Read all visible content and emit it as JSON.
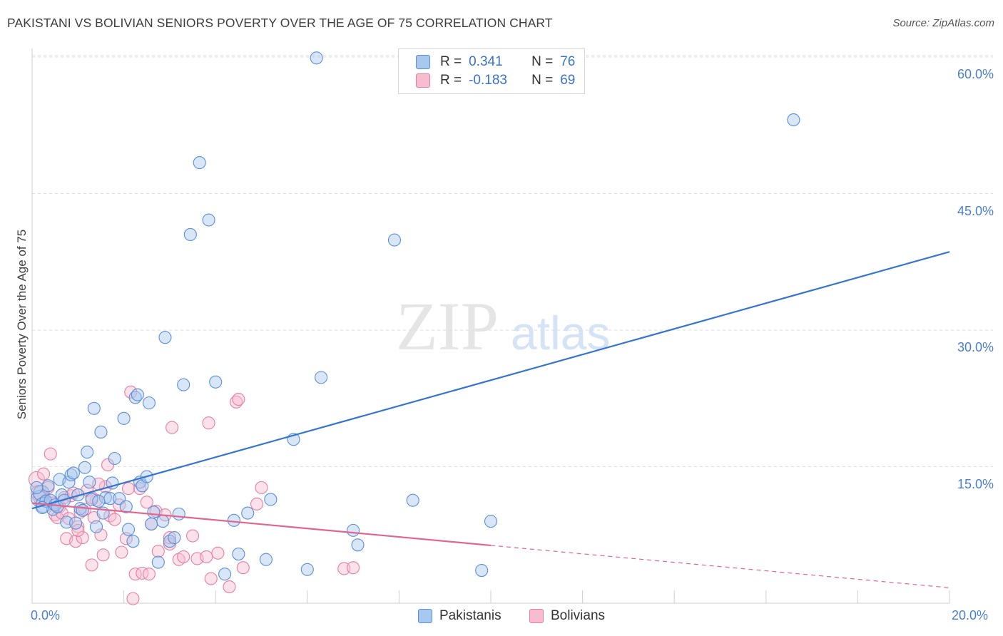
{
  "title": "PAKISTANI VS BOLIVIAN SENIORS POVERTY OVER THE AGE OF 75 CORRELATION CHART",
  "source": "Source: ZipAtlas.com",
  "watermark": {
    "zip": "ZIP",
    "atlas": "atlas"
  },
  "legend_top": {
    "rows": [
      {
        "r_label": "R =",
        "r_value": "0.341",
        "n_label": "N =",
        "n_value": "76"
      },
      {
        "r_label": "R =",
        "r_value": "-0.183",
        "n_label": "N =",
        "n_value": "69"
      }
    ]
  },
  "legend_bottom": {
    "series1": "Pakistanis",
    "series2": "Bolivians"
  },
  "colors": {
    "pak_fill": "#a9c8f0",
    "pak_stroke": "#5b8fd6",
    "pak_line": "#3575cf",
    "bol_fill": "#f7bcd0",
    "bol_stroke": "#e57ea1",
    "bol_line": "#e0668f",
    "tick_text": "#4a7fcf"
  },
  "chart_data": {
    "type": "scatter",
    "title": "PAKISTANI VS BOLIVIAN SENIORS POVERTY OVER THE AGE OF 75 CORRELATION CHART",
    "xlabel": "",
    "ylabel": "Seniors Poverty Over the Age of 75",
    "xlim": [
      0,
      20
    ],
    "ylim": [
      0,
      60
    ],
    "x_tick_labels": [
      "0.0%",
      "20.0%"
    ],
    "y_ticks": [
      15,
      30,
      45,
      60
    ],
    "y_tick_labels": [
      "15.0%",
      "30.0%",
      "45.0%",
      "60.0%"
    ],
    "grid": true,
    "legend_position": "top-center",
    "series": [
      {
        "name": "Pakistanis",
        "R": 0.341,
        "N": 76,
        "trend": {
          "x": [
            0,
            20
          ],
          "y": [
            10.4,
            38.6
          ],
          "dashed_from": null
        },
        "points": [
          [
            0.15,
            11.5
          ],
          [
            0.2,
            12.1
          ],
          [
            0.25,
            10.8
          ],
          [
            0.3,
            11.2
          ],
          [
            0.35,
            12.9
          ],
          [
            0.4,
            11.3
          ],
          [
            0.45,
            10.3
          ],
          [
            0.5,
            10.8
          ],
          [
            0.55,
            10.6
          ],
          [
            0.6,
            13.6
          ],
          [
            0.65,
            11.9
          ],
          [
            0.7,
            11.3
          ],
          [
            0.75,
            8.9
          ],
          [
            0.8,
            13.3
          ],
          [
            0.85,
            14.1
          ],
          [
            0.9,
            14.3
          ],
          [
            0.95,
            8.8
          ],
          [
            1.0,
            11.9
          ],
          [
            1.05,
            10.4
          ],
          [
            1.1,
            10.2
          ],
          [
            1.15,
            14.9
          ],
          [
            1.2,
            16.6
          ],
          [
            1.25,
            13.3
          ],
          [
            1.3,
            11.4
          ],
          [
            1.35,
            21.4
          ],
          [
            1.4,
            8.4
          ],
          [
            1.5,
            18.8
          ],
          [
            1.55,
            9.9
          ],
          [
            1.6,
            11.6
          ],
          [
            1.7,
            11.5
          ],
          [
            1.75,
            13.2
          ],
          [
            1.8,
            15.9
          ],
          [
            1.9,
            11.5
          ],
          [
            2.0,
            20.3
          ],
          [
            2.05,
            10.6
          ],
          [
            2.1,
            8.1
          ],
          [
            2.2,
            6.8
          ],
          [
            2.25,
            22.6
          ],
          [
            2.3,
            22.9
          ],
          [
            2.35,
            13.3
          ],
          [
            2.4,
            12.9
          ],
          [
            2.5,
            13.9
          ],
          [
            2.55,
            22.0
          ],
          [
            2.6,
            8.7
          ],
          [
            2.65,
            10.0
          ],
          [
            2.75,
            4.5
          ],
          [
            2.9,
            29.2
          ],
          [
            3.0,
            6.8
          ],
          [
            3.1,
            7.2
          ],
          [
            3.2,
            9.8
          ],
          [
            3.3,
            24.0
          ],
          [
            3.45,
            40.5
          ],
          [
            3.65,
            48.4
          ],
          [
            3.85,
            42.1
          ],
          [
            4.0,
            24.3
          ],
          [
            4.2,
            3.2
          ],
          [
            4.4,
            9.1
          ],
          [
            4.5,
            5.4
          ],
          [
            4.7,
            9.9
          ],
          [
            5.1,
            4.8
          ],
          [
            5.2,
            11.4
          ],
          [
            5.7,
            18.0
          ],
          [
            6.0,
            3.7
          ],
          [
            6.2,
            59.9
          ],
          [
            6.3,
            24.8
          ],
          [
            7.0,
            8.0
          ],
          [
            7.1,
            6.4
          ],
          [
            7.9,
            39.9
          ],
          [
            8.3,
            11.3
          ],
          [
            9.8,
            3.6
          ],
          [
            10.0,
            9.0
          ],
          [
            16.6,
            53.1
          ],
          [
            0.1,
            12.7
          ],
          [
            0.22,
            10.5
          ],
          [
            1.45,
            11.2
          ],
          [
            2.85,
            9.0
          ]
        ]
      },
      {
        "name": "Bolivians",
        "R": -0.183,
        "N": 69,
        "trend": {
          "x": [
            0,
            20
          ],
          "y": [
            11.0,
            1.7
          ],
          "dashed_from": 10.0
        },
        "points": [
          [
            0.1,
            13.6
          ],
          [
            0.15,
            12.1
          ],
          [
            0.2,
            11.6
          ],
          [
            0.25,
            14.2
          ],
          [
            0.3,
            11.3
          ],
          [
            0.35,
            12.7
          ],
          [
            0.4,
            16.4
          ],
          [
            0.45,
            11.0
          ],
          [
            0.5,
            9.7
          ],
          [
            0.55,
            9.4
          ],
          [
            0.6,
            10.6
          ],
          [
            0.65,
            9.9
          ],
          [
            0.7,
            11.6
          ],
          [
            0.75,
            7.1
          ],
          [
            0.8,
            9.3
          ],
          [
            0.85,
            11.8
          ],
          [
            0.9,
            12.1
          ],
          [
            0.95,
            6.8
          ],
          [
            1.0,
            8.4
          ],
          [
            1.05,
            10.0
          ],
          [
            1.1,
            7.2
          ],
          [
            1.15,
            10.3
          ],
          [
            1.2,
            12.4
          ],
          [
            1.3,
            4.2
          ],
          [
            1.35,
            9.4
          ],
          [
            1.4,
            11.3
          ],
          [
            1.5,
            7.5
          ],
          [
            1.55,
            5.3
          ],
          [
            1.6,
            12.8
          ],
          [
            1.7,
            9.6
          ],
          [
            1.8,
            9.2
          ],
          [
            1.9,
            10.8
          ],
          [
            1.95,
            5.6
          ],
          [
            2.05,
            7.1
          ],
          [
            2.1,
            12.6
          ],
          [
            2.15,
            23.2
          ],
          [
            2.25,
            3.2
          ],
          [
            2.35,
            12.6
          ],
          [
            2.4,
            3.3
          ],
          [
            2.5,
            11.1
          ],
          [
            2.6,
            8.7
          ],
          [
            2.7,
            10.1
          ],
          [
            2.75,
            5.7
          ],
          [
            2.9,
            9.7
          ],
          [
            3.0,
            6.5
          ],
          [
            3.05,
            19.3
          ],
          [
            3.2,
            4.8
          ],
          [
            3.3,
            5.1
          ],
          [
            3.5,
            7.4
          ],
          [
            3.6,
            4.9
          ],
          [
            3.8,
            5.1
          ],
          [
            3.9,
            2.7
          ],
          [
            4.05,
            5.5
          ],
          [
            4.3,
            1.8
          ],
          [
            4.45,
            22.1
          ],
          [
            4.5,
            22.4
          ],
          [
            4.6,
            3.9
          ],
          [
            4.9,
            10.9
          ],
          [
            5.0,
            12.7
          ],
          [
            6.8,
            3.8
          ],
          [
            7.0,
            3.9
          ],
          [
            1.3,
            11.6
          ],
          [
            1.65,
            15.2
          ],
          [
            1.0,
            8.0
          ],
          [
            2.2,
            0.5
          ],
          [
            2.55,
            3.2
          ],
          [
            3.0,
            7.2
          ],
          [
            1.45,
            13.1
          ],
          [
            3.85,
            19.8
          ]
        ]
      }
    ]
  }
}
